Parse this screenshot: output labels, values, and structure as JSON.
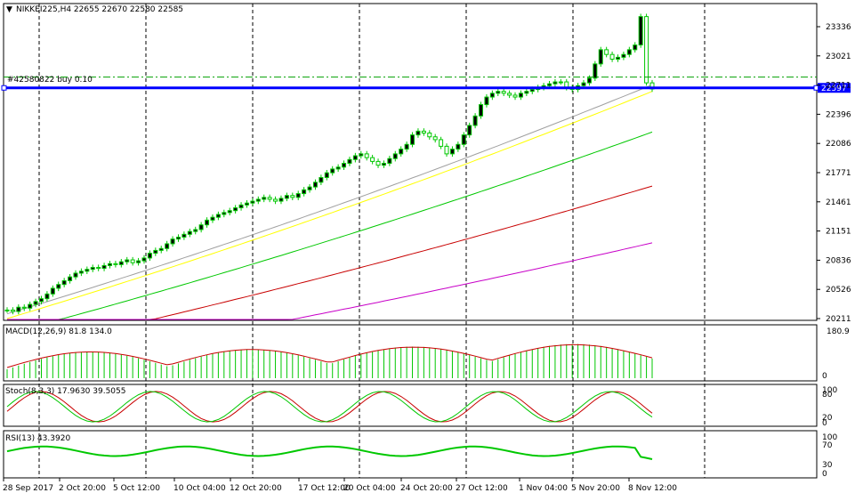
{
  "window": {
    "symbol_line": "NIKKEI225,H4  22655 22670 22580 22585",
    "order_label": "#42580822 buy 0.10",
    "current_price": "22597"
  },
  "price_axis": {
    "labels": [
      "23336",
      "23021",
      "22711",
      "22396",
      "22086",
      "21771",
      "21461",
      "21151",
      "20836",
      "20526",
      "20211"
    ],
    "min": 20160,
    "max": 23450
  },
  "time_axis": {
    "labels": [
      "28 Sep 2017",
      "2 Oct 20:00",
      "5 Oct 12:00",
      "10 Oct 04:00",
      "12 Oct 20:00",
      "17 Oct 12:00",
      "20 Oct 04:00",
      "24 Oct 20:00",
      "27 Oct 12:00",
      "1 Nov 04:00",
      "5 Nov 20:00",
      "8 Nov 12:00"
    ]
  },
  "indicators": {
    "macd": {
      "label": "MACD(12,26,9) 81.8 134.0",
      "scale_top": "180.9",
      "scale_bottom": "0"
    },
    "stoch": {
      "label": "Stoch(8,3,3) 17.9630 39.5055",
      "levels": [
        "100",
        "80",
        "20",
        "0"
      ]
    },
    "rsi": {
      "label": "RSI(13) 43.3920",
      "levels": [
        "100",
        "70",
        "30",
        "0"
      ]
    }
  },
  "chart_data": {
    "type": "candlestick",
    "close_series": [
      20250,
      20235,
      20280,
      20270,
      20310,
      20340,
      20370,
      20420,
      20480,
      20520,
      20560,
      20600,
      20640,
      20660,
      20680,
      20700,
      20690,
      20720,
      20740,
      20730,
      20760,
      20780,
      20750,
      20770,
      20800,
      20850,
      20880,
      20900,
      20950,
      21000,
      21020,
      21050,
      21080,
      21100,
      21150,
      21200,
      21230,
      21260,
      21280,
      21300,
      21330,
      21360,
      21380,
      21400,
      21420,
      21440,
      21420,
      21400,
      21430,
      21460,
      21440,
      21480,
      21520,
      21550,
      21600,
      21650,
      21700,
      21740,
      21760,
      21800,
      21840,
      21880,
      21900,
      21860,
      21820,
      21780,
      21800,
      21850,
      21900,
      21950,
      22000,
      22100,
      22140,
      22120,
      22080,
      22050,
      21980,
      21900,
      21950,
      22000,
      22100,
      22200,
      22300,
      22420,
      22500,
      22540,
      22560,
      22540,
      22520,
      22500,
      22540,
      22560,
      22580,
      22600,
      22620,
      22640,
      22660,
      22660,
      22600,
      22580,
      22620,
      22650,
      22700,
      22850,
      23000,
      22950,
      22900,
      22920,
      22950,
      23000,
      23050,
      23350,
      22650,
      22585
    ],
    "ma_series": [
      {
        "name": "MA grey",
        "color": "#a0a0a0",
        "start": 20210,
        "end": 22630
      },
      {
        "name": "MA yellow",
        "color": "#ffff00",
        "start": 20160,
        "end": 22560
      },
      {
        "name": "MA green",
        "color": "#00c800",
        "start": 20000,
        "end": 22130
      },
      {
        "name": "MA red",
        "color": "#c80000",
        "start": 19800,
        "end": 21560
      },
      {
        "name": "MA magenta",
        "color": "#c800c8",
        "start": 19600,
        "end": 20960
      }
    ],
    "order_price": 22711,
    "line_price": 22597
  },
  "colors": {
    "bull": "#00c800",
    "bear": "#00c800",
    "blue_line": "#0000ff",
    "order_line": "#00a000"
  }
}
